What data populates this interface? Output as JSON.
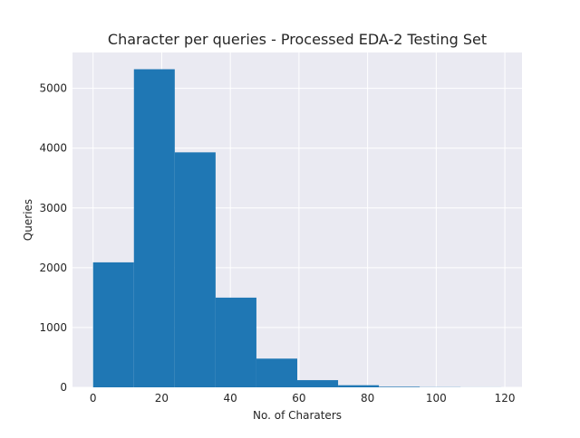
{
  "chart_data": {
    "type": "bar",
    "title": "Character per queries - Processed EDA-2 Testing Set",
    "xlabel": "No. of Charaters",
    "ylabel": "Queries",
    "bin_edges": [
      0,
      11.9,
      23.8,
      35.7,
      47.6,
      59.5,
      71.4,
      83.3,
      95.2,
      107.1,
      119
    ],
    "values": [
      2090,
      5320,
      3930,
      1500,
      480,
      120,
      35,
      10,
      3,
      1
    ],
    "xlim": [
      -6,
      125
    ],
    "ylim": [
      0,
      5600
    ],
    "xticks": [
      "0",
      "20",
      "40",
      "60",
      "80",
      "100",
      "120"
    ],
    "xtick_values": [
      0,
      20,
      40,
      60,
      80,
      100,
      120
    ],
    "yticks": [
      "0",
      "1000",
      "2000",
      "3000",
      "4000",
      "5000"
    ],
    "ytick_values": [
      0,
      1000,
      2000,
      3000,
      4000,
      5000
    ],
    "grid": true,
    "bar_color": "#1f77b4",
    "background_color": "#eaeaf2"
  }
}
